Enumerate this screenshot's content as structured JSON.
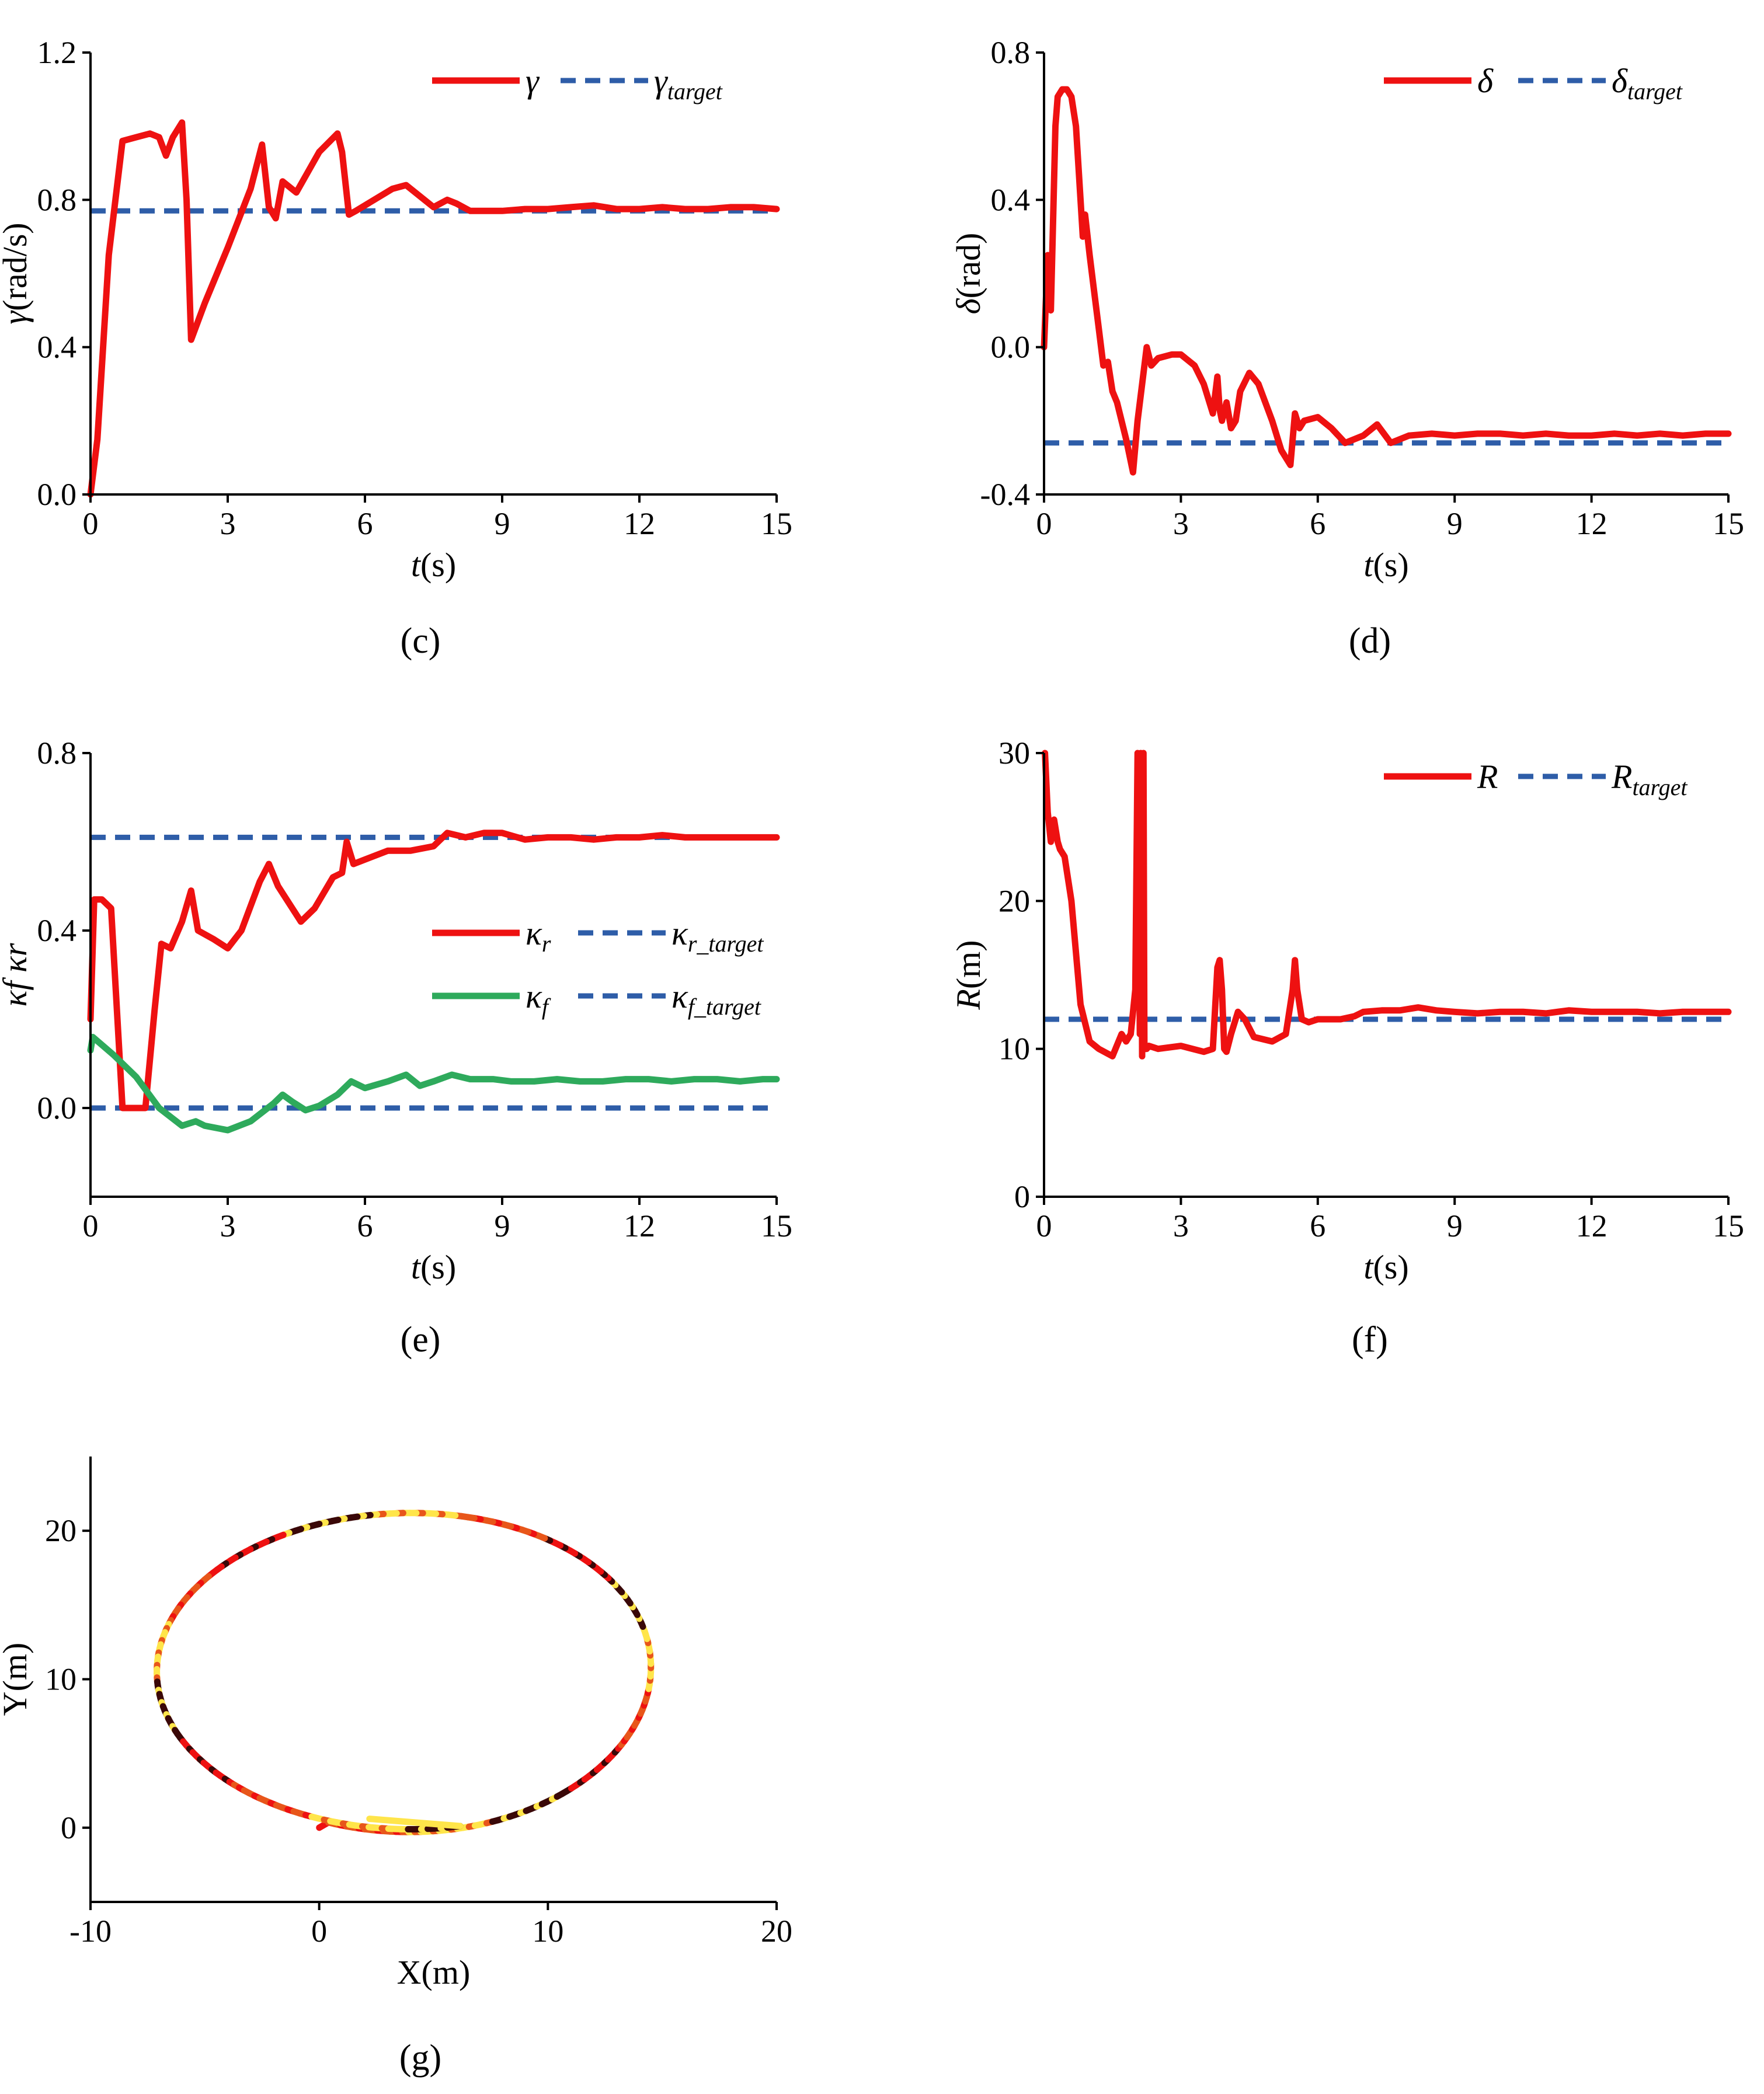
{
  "figure": {
    "panel_labels": {
      "c": "(c)",
      "d": "(d)",
      "e": "(e)",
      "f": "(f)",
      "g": "(g)"
    },
    "colors": {
      "red": "#ee1111",
      "blue": "#2e5da8",
      "green": "#2eaa5c",
      "dark": "#3a0808",
      "orange": "#e8561a",
      "yellow": "#ffe54a"
    }
  },
  "chart_data": [
    {
      "id": "c",
      "type": "line",
      "xlabel_italic": "t",
      "xlabel_rest": "(s)",
      "ylabel_symbol": "γ",
      "ylabel_unit": "(rad/s)",
      "xlim": [
        0,
        15
      ],
      "ylim": [
        0,
        1.2
      ],
      "xticks": [
        "0",
        "3",
        "6",
        "9",
        "12",
        "15"
      ],
      "yticks": [
        "0.0",
        "0.4",
        "0.8",
        "1.2"
      ],
      "xticks_v": [
        0,
        3,
        6,
        9,
        12,
        15
      ],
      "yticks_v": [
        0,
        0.4,
        0.8,
        1.2
      ],
      "legend": [
        {
          "symbol": "γ",
          "sub": ""
        },
        {
          "symbol": "γ",
          "sub": "target"
        }
      ],
      "series": [
        {
          "name": "γ",
          "style": "solid",
          "color": "red",
          "x": [
            0,
            0.15,
            0.4,
            0.7,
            1.0,
            1.3,
            1.5,
            1.65,
            1.8,
            2.0,
            2.1,
            2.2,
            2.5,
            3.0,
            3.5,
            3.75,
            3.9,
            4.05,
            4.2,
            4.5,
            5.0,
            5.4,
            5.5,
            5.65,
            5.8,
            6.2,
            6.6,
            6.9,
            7.2,
            7.5,
            7.8,
            8.0,
            8.3,
            8.6,
            9,
            9.5,
            10,
            10.5,
            11,
            11.5,
            12,
            12.5,
            13,
            13.5,
            14,
            14.5,
            15
          ],
          "y": [
            0.0,
            0.15,
            0.65,
            0.96,
            0.97,
            0.98,
            0.97,
            0.92,
            0.97,
            1.01,
            0.8,
            0.42,
            0.52,
            0.67,
            0.83,
            0.95,
            0.78,
            0.75,
            0.85,
            0.82,
            0.93,
            0.98,
            0.93,
            0.76,
            0.77,
            0.8,
            0.83,
            0.84,
            0.81,
            0.78,
            0.8,
            0.79,
            0.77,
            0.77,
            0.77,
            0.775,
            0.775,
            0.78,
            0.785,
            0.775,
            0.775,
            0.78,
            0.775,
            0.775,
            0.78,
            0.78,
            0.775
          ]
        },
        {
          "name": "γ target",
          "style": "dash",
          "color": "blue",
          "x": [
            0,
            15
          ],
          "y": [
            0.77,
            0.77
          ]
        }
      ]
    },
    {
      "id": "d",
      "type": "line",
      "xlabel_italic": "t",
      "xlabel_rest": "(s)",
      "ylabel_symbol": "δ",
      "ylabel_unit": "(rad)",
      "xlim": [
        0,
        15
      ],
      "ylim": [
        -0.4,
        0.8
      ],
      "xticks": [
        "0",
        "3",
        "6",
        "9",
        "12",
        "15"
      ],
      "yticks": [
        "-0.4",
        "0.0",
        "0.4",
        "0.8"
      ],
      "xticks_v": [
        0,
        3,
        6,
        9,
        12,
        15
      ],
      "yticks_v": [
        -0.4,
        0,
        0.4,
        0.8
      ],
      "legend": [
        {
          "symbol": "δ",
          "sub": ""
        },
        {
          "symbol": "δ",
          "sub": "target"
        }
      ],
      "series": [
        {
          "name": "δ",
          "style": "solid",
          "color": "red",
          "x": [
            0,
            0.08,
            0.15,
            0.2,
            0.25,
            0.3,
            0.4,
            0.5,
            0.6,
            0.7,
            0.8,
            0.85,
            0.9,
            1.0,
            1.1,
            1.2,
            1.3,
            1.4,
            1.5,
            1.6,
            1.8,
            1.95,
            2.05,
            2.15,
            2.25,
            2.35,
            2.5,
            2.8,
            3.0,
            3.3,
            3.5,
            3.7,
            3.8,
            3.85,
            3.9,
            4.0,
            4.1,
            4.2,
            4.3,
            4.5,
            4.7,
            5.0,
            5.2,
            5.4,
            5.5,
            5.6,
            5.7,
            6.0,
            6.3,
            6.6,
            7.0,
            7.3,
            7.6,
            8.0,
            8.5,
            9,
            9.5,
            10,
            10.5,
            11,
            11.5,
            12,
            12.5,
            13,
            13.5,
            14,
            14.5,
            15
          ],
          "y": [
            0.0,
            0.25,
            0.1,
            0.35,
            0.6,
            0.68,
            0.7,
            0.7,
            0.68,
            0.6,
            0.4,
            0.3,
            0.36,
            0.25,
            0.15,
            0.05,
            -0.05,
            -0.04,
            -0.12,
            -0.15,
            -0.25,
            -0.34,
            -0.2,
            -0.1,
            0.0,
            -0.05,
            -0.03,
            -0.02,
            -0.02,
            -0.05,
            -0.1,
            -0.18,
            -0.08,
            -0.17,
            -0.2,
            -0.15,
            -0.22,
            -0.2,
            -0.12,
            -0.07,
            -0.1,
            -0.2,
            -0.28,
            -0.32,
            -0.18,
            -0.22,
            -0.2,
            -0.19,
            -0.22,
            -0.26,
            -0.24,
            -0.21,
            -0.26,
            -0.24,
            -0.235,
            -0.24,
            -0.235,
            -0.235,
            -0.24,
            -0.235,
            -0.24,
            -0.24,
            -0.235,
            -0.24,
            -0.235,
            -0.24,
            -0.235,
            -0.235
          ]
        },
        {
          "name": "δ target",
          "style": "dash",
          "color": "blue",
          "x": [
            0,
            15
          ],
          "y": [
            -0.26,
            -0.26
          ]
        }
      ]
    },
    {
      "id": "e",
      "type": "line",
      "xlabel_italic": "t",
      "xlabel_rest": "(s)",
      "ylabel_text": "κf κr",
      "xlim": [
        0,
        15
      ],
      "ylim": [
        -0.2,
        0.8
      ],
      "xticks": [
        "0",
        "3",
        "6",
        "9",
        "12",
        "15"
      ],
      "yticks": [
        "0.0",
        "0.4",
        "0.8"
      ],
      "xticks_v": [
        0,
        3,
        6,
        9,
        12,
        15
      ],
      "yticks_v": [
        0,
        0.4,
        0.8
      ],
      "legend": [
        {
          "symbol": "κ",
          "sub": "r"
        },
        {
          "symbol": "κ",
          "sub": "r_target"
        },
        {
          "symbol": "κ",
          "sub": "f"
        },
        {
          "symbol": "κ",
          "sub": "f_target"
        }
      ],
      "series": [
        {
          "name": "κr",
          "style": "solid",
          "color": "red",
          "x": [
            0,
            0.08,
            0.25,
            0.45,
            0.7,
            1.2,
            1.4,
            1.55,
            1.75,
            2.0,
            2.2,
            2.35,
            2.7,
            3.0,
            3.3,
            3.7,
            3.9,
            4.1,
            4.6,
            4.9,
            5.3,
            5.5,
            5.6,
            5.75,
            6.0,
            6.5,
            7.0,
            7.5,
            7.8,
            8.2,
            8.6,
            9,
            9.5,
            10,
            10.5,
            11,
            11.5,
            12,
            12.5,
            13,
            13.5,
            14,
            14.5,
            15
          ],
          "y": [
            0.2,
            0.47,
            0.47,
            0.45,
            0.0,
            0.0,
            0.22,
            0.37,
            0.36,
            0.42,
            0.49,
            0.4,
            0.38,
            0.36,
            0.4,
            0.51,
            0.55,
            0.5,
            0.42,
            0.45,
            0.52,
            0.53,
            0.6,
            0.55,
            0.56,
            0.58,
            0.58,
            0.59,
            0.62,
            0.61,
            0.62,
            0.62,
            0.605,
            0.61,
            0.61,
            0.605,
            0.61,
            0.61,
            0.615,
            0.61,
            0.61,
            0.61,
            0.61,
            0.61
          ]
        },
        {
          "name": "κr target",
          "style": "dash",
          "color": "blue",
          "x": [
            0,
            15
          ],
          "y": [
            0.61,
            0.61
          ]
        },
        {
          "name": "κf",
          "style": "solid",
          "color": "green",
          "x": [
            0,
            0.05,
            0.5,
            1.0,
            1.5,
            2.0,
            2.3,
            2.5,
            3.0,
            3.5,
            4.0,
            4.2,
            4.4,
            4.7,
            5.0,
            5.4,
            5.7,
            6.0,
            6.5,
            6.9,
            7.2,
            7.5,
            7.9,
            8.3,
            8.8,
            9.2,
            9.7,
            10.2,
            10.7,
            11.2,
            11.7,
            12.2,
            12.7,
            13.2,
            13.7,
            14.2,
            14.7,
            15
          ],
          "y": [
            0.13,
            0.16,
            0.12,
            0.07,
            0.0,
            -0.04,
            -0.03,
            -0.04,
            -0.05,
            -0.03,
            0.01,
            0.03,
            0.015,
            -0.005,
            0.005,
            0.03,
            0.06,
            0.045,
            0.06,
            0.075,
            0.05,
            0.06,
            0.075,
            0.065,
            0.065,
            0.06,
            0.06,
            0.065,
            0.06,
            0.06,
            0.065,
            0.065,
            0.06,
            0.065,
            0.065,
            0.06,
            0.065,
            0.065
          ]
        },
        {
          "name": "κf target",
          "style": "dash",
          "color": "blue",
          "x": [
            0,
            15
          ],
          "y": [
            0,
            0
          ]
        }
      ]
    },
    {
      "id": "f",
      "type": "line",
      "xlabel_italic": "t",
      "xlabel_rest": "(s)",
      "ylabel_italic": "R",
      "ylabel_rest": "(m)",
      "xlim": [
        0,
        15
      ],
      "ylim": [
        0,
        30
      ],
      "xticks": [
        "0",
        "3",
        "6",
        "9",
        "12",
        "15"
      ],
      "yticks": [
        "0",
        "10",
        "20",
        "30"
      ],
      "xticks_v": [
        0,
        3,
        6,
        9,
        12,
        15
      ],
      "yticks_v": [
        0,
        10,
        20,
        30
      ],
      "legend": [
        {
          "symbol": "R",
          "sub": ""
        },
        {
          "symbol": "R",
          "sub": "target"
        }
      ],
      "series": [
        {
          "name": "R",
          "style": "solid",
          "color": "red",
          "x": [
            0.02,
            0.08,
            0.15,
            0.22,
            0.3,
            0.35,
            0.45,
            0.6,
            0.8,
            1.0,
            1.2,
            1.5,
            1.7,
            1.8,
            1.9,
            2.0,
            2.05,
            2.1,
            2.12,
            2.15,
            2.18,
            2.2,
            2.25,
            2.3,
            2.5,
            3,
            3.5,
            3.7,
            3.8,
            3.85,
            3.9,
            3.95,
            4.0,
            4.1,
            4.25,
            4.4,
            4.6,
            5.0,
            5.3,
            5.45,
            5.5,
            5.55,
            5.65,
            5.8,
            6.0,
            6.5,
            6.8,
            7.0,
            7.4,
            7.8,
            8.2,
            8.6,
            9,
            9.5,
            10,
            10.5,
            11,
            11.5,
            12,
            12.5,
            13,
            13.5,
            14,
            14.5,
            15
          ],
          "y": [
            30,
            26,
            24,
            25.5,
            24,
            23.5,
            23,
            20,
            13,
            10.5,
            10,
            9.5,
            11,
            10.5,
            11,
            14,
            30,
            11,
            30,
            9.5,
            30,
            10,
            10,
            10.2,
            10,
            10.2,
            9.8,
            10,
            15.5,
            16,
            14,
            10,
            9.8,
            11,
            12.5,
            12,
            10.8,
            10.5,
            11,
            14,
            16,
            14,
            12,
            11.8,
            12,
            12,
            12.2,
            12.5,
            12.6,
            12.6,
            12.8,
            12.6,
            12.5,
            12.4,
            12.5,
            12.5,
            12.4,
            12.6,
            12.5,
            12.5,
            12.5,
            12.4,
            12.5,
            12.5,
            12.5
          ]
        },
        {
          "name": "R target",
          "style": "dash",
          "color": "blue",
          "x": [
            0,
            15
          ],
          "y": [
            12,
            12
          ]
        }
      ]
    },
    {
      "id": "g",
      "type": "scatter",
      "xlabel_text": "X(m)",
      "ylabel_text": "Y(m)",
      "xlim": [
        -10,
        20
      ],
      "ylim": [
        -5,
        25
      ],
      "xticks": [
        "-10",
        "0",
        "10",
        "20"
      ],
      "yticks": [
        "0",
        "10",
        "20"
      ],
      "xticks_v": [
        -10,
        0,
        10,
        20
      ],
      "yticks_v": [
        0,
        10,
        20
      ],
      "trajectory": {
        "center": [
          4.0,
          10.5
        ],
        "semi_axis_x": 10.5,
        "semi_axis_y": 10.8,
        "start": [
          0.0,
          0.0
        ],
        "end": [
          2.2,
          0.6
        ],
        "note": "color-graded trajectory, two overlapping laps"
      }
    }
  ]
}
